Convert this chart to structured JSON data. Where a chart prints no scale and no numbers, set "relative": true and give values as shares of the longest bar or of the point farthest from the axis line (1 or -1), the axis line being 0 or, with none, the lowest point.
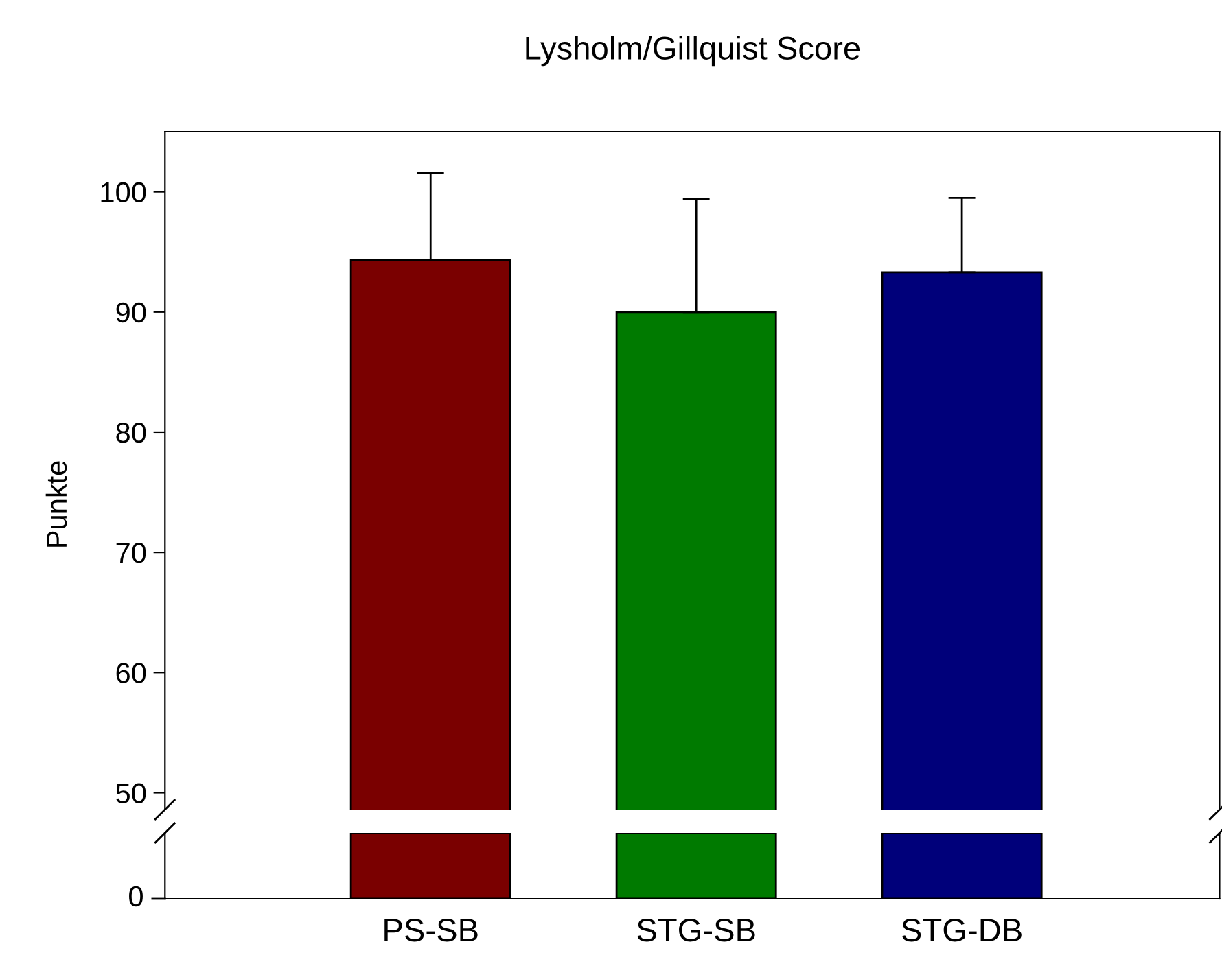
{
  "chart_data": [
    {
      "type": "bar",
      "title": "Lysholm/Gillquist Score",
      "ylabel": "Punkte",
      "categories": [
        null,
        null,
        null
      ],
      "values": [
        94.3,
        90.0,
        93.3
      ],
      "colors": [
        "#7a0000",
        "#007a00",
        "#00007a"
      ],
      "errors": [
        [
          94.3,
          101.6
        ],
        [
          90.0,
          99.4
        ],
        [
          93.3,
          99.5
        ]
      ],
      "ylim": [
        48.6,
        105
      ],
      "yticks": [
        50,
        60,
        70,
        80,
        90,
        100
      ],
      "tick_labels": "y",
      "grid": false,
      "legend": false
    },
    {
      "type": "bar",
      "categories": [
        "PS-SB",
        "STG-SB",
        "STG-DB"
      ],
      "values": [
        1,
        1,
        1
      ],
      "colors": [
        "#7a0000",
        "#007a00",
        "#00007a"
      ],
      "relative": true,
      "annotations": [
        "0"
      ],
      "grid": false,
      "legend": false
    }
  ]
}
